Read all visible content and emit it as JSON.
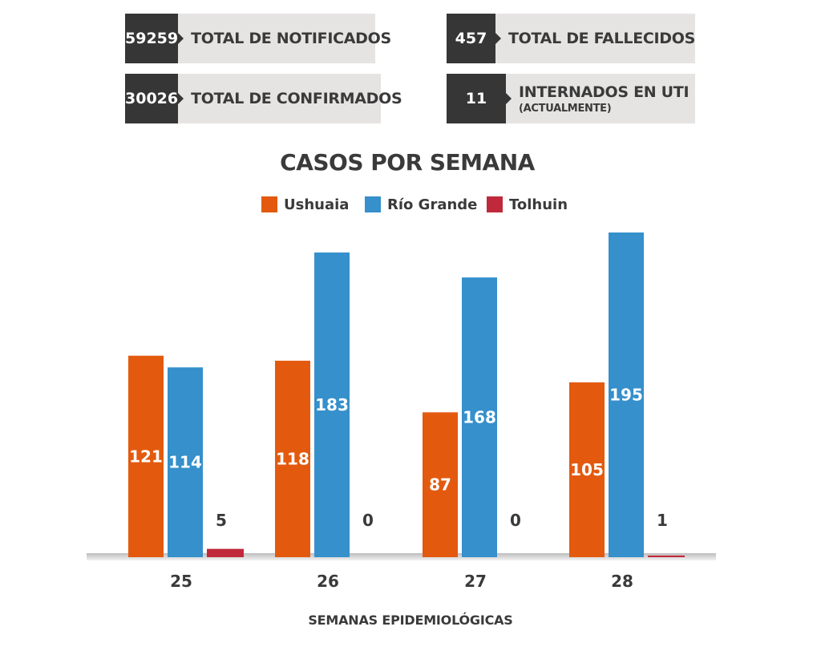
{
  "stats": {
    "notificados": {
      "value": "59259",
      "label": "TOTAL DE NOTIFICADOS"
    },
    "fallecidos": {
      "value": "457",
      "label": "TOTAL DE FALLECIDOS"
    },
    "confirmados": {
      "value": "30026",
      "label": "TOTAL DE CONFIRMADOS"
    },
    "uti": {
      "value": "11",
      "label": "INTERNADOS EN UTI",
      "sublabel": "(ACTUALMENTE)"
    }
  },
  "colors": {
    "ushuaia": "#e35a0f",
    "rio_grande": "#3590cb",
    "tolhuin": "#c0283b",
    "dark_box": "#363636",
    "light_box": "#e6e4e3",
    "text": "#3a3a3a"
  },
  "chart_data": {
    "type": "bar",
    "title": "CASOS POR SEMANA",
    "xlabel": "SEMANAS EPIDEMIOLÓGICAS",
    "ylabel": "",
    "categories": [
      "25",
      "26",
      "27",
      "28"
    ],
    "series": [
      {
        "name": "Ushuaia",
        "color": "#e35a0f",
        "values": [
          121,
          118,
          87,
          105
        ]
      },
      {
        "name": "Río Grande",
        "color": "#3590cb",
        "values": [
          114,
          183,
          168,
          195
        ]
      },
      {
        "name": "Tolhuin",
        "color": "#c0283b",
        "values": [
          5,
          0,
          0,
          1
        ]
      }
    ],
    "ylim": [
      0,
      195
    ],
    "grid": false,
    "legend_position": "top-center"
  }
}
